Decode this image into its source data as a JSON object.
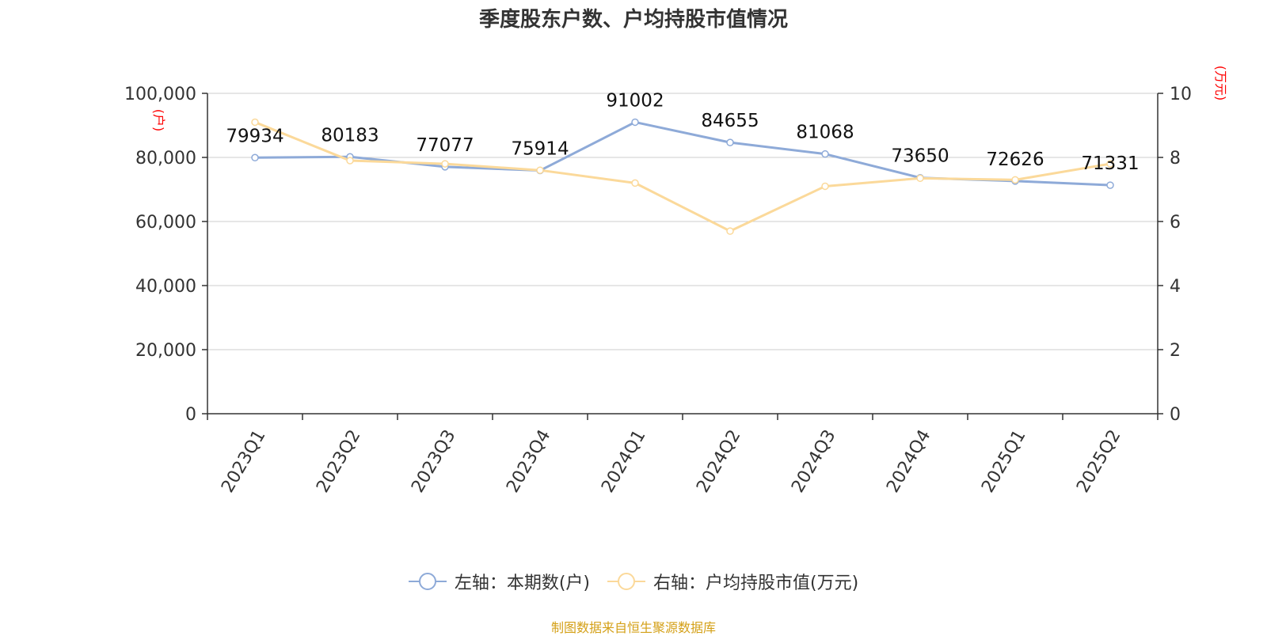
{
  "title": "季度股东户数、户均持股市值情况",
  "source": "制图数据来自恒生聚源数据库",
  "colors": {
    "left_series": "#8eaad8",
    "right_series": "#fbd99a",
    "axis": "#333333",
    "grid": "#cccccc",
    "unit_label": "#ff0000",
    "source": "#d4a017"
  },
  "chart_data": {
    "type": "line",
    "categories": [
      "2023Q1",
      "2023Q2",
      "2023Q3",
      "2023Q4",
      "2024Q1",
      "2024Q2",
      "2024Q3",
      "2024Q4",
      "2025Q1",
      "2025Q2"
    ],
    "y_left": {
      "unit": "(户)",
      "range": [
        0,
        100000
      ],
      "ticks": [
        "0",
        "20,000",
        "40,000",
        "60,000",
        "80,000",
        "100,000"
      ],
      "tick_values": [
        0,
        20000,
        40000,
        60000,
        80000,
        100000
      ]
    },
    "y_right": {
      "unit": "(万元)",
      "range": [
        0,
        10
      ],
      "ticks": [
        "0",
        "2",
        "4",
        "6",
        "8",
        "10"
      ],
      "tick_values": [
        0,
        2,
        4,
        6,
        8,
        10
      ]
    },
    "grid": true,
    "legend_position": "bottom",
    "series": [
      {
        "name": "左轴：本期数(户)",
        "axis": "left",
        "values": [
          79934,
          80183,
          77077,
          75914,
          91002,
          84655,
          81068,
          73650,
          72626,
          71331
        ],
        "labels": [
          "79934",
          "80183",
          "77077",
          "75914",
          "91002",
          "84655",
          "81068",
          "73650",
          "72626",
          "71331"
        ]
      },
      {
        "name": "右轴：户均持股市值(万元)",
        "axis": "right",
        "values": [
          9.1,
          7.9,
          7.8,
          7.6,
          7.2,
          5.7,
          7.1,
          7.35,
          7.3,
          7.8
        ]
      }
    ]
  }
}
